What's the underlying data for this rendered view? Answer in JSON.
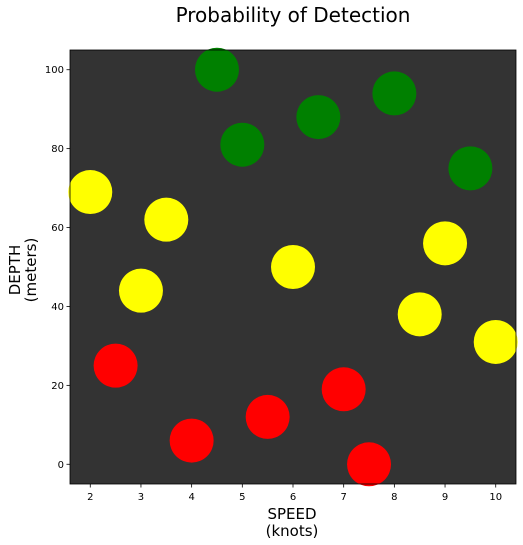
{
  "chart_data": {
    "type": "scatter",
    "title": "Probability of Detection",
    "xlabel": [
      "SPEED",
      "(knots)"
    ],
    "ylabel": [
      "DEPTH",
      "(meters)"
    ],
    "xlim": [
      1.6,
      10.4
    ],
    "ylim": [
      -5,
      105
    ],
    "xticks": [
      2,
      3,
      4,
      5,
      6,
      7,
      8,
      9,
      10
    ],
    "yticks": [
      0,
      20,
      40,
      60,
      80,
      100
    ],
    "background_color": "#333333",
    "grid": false,
    "series": [
      {
        "color": "#008000",
        "points": [
          {
            "x": 4.5,
            "y": 100
          },
          {
            "x": 6.5,
            "y": 88
          },
          {
            "x": 8.0,
            "y": 94
          },
          {
            "x": 5.0,
            "y": 81
          },
          {
            "x": 9.5,
            "y": 75
          }
        ]
      },
      {
        "color": "#ffff00",
        "points": [
          {
            "x": 2.0,
            "y": 69
          },
          {
            "x": 3.5,
            "y": 62
          },
          {
            "x": 9.0,
            "y": 56
          },
          {
            "x": 6.0,
            "y": 50
          },
          {
            "x": 3.0,
            "y": 44
          },
          {
            "x": 8.5,
            "y": 38
          },
          {
            "x": 10.0,
            "y": 31
          }
        ]
      },
      {
        "color": "#ff0000",
        "points": [
          {
            "x": 2.5,
            "y": 25
          },
          {
            "x": 7.0,
            "y": 19
          },
          {
            "x": 5.5,
            "y": 12
          },
          {
            "x": 4.0,
            "y": 6
          },
          {
            "x": 7.5,
            "y": 0
          }
        ]
      }
    ]
  }
}
